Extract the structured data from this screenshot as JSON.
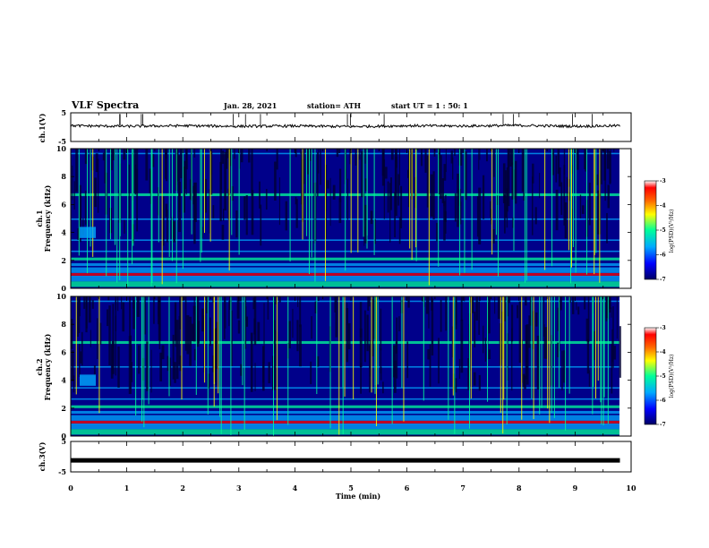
{
  "header": {
    "title": "VLF Spectra",
    "date": "Jan. 28, 2021",
    "station": "station= ATH",
    "start": "start  UT =   1 : 50: 1"
  },
  "colors": {
    "colormap": [
      "#000066",
      "#0000ff",
      "#00aaff",
      "#00ff99",
      "#ffff00",
      "#ff6600",
      "#ff0000",
      "#ffffff"
    ],
    "trace": "#000000"
  },
  "chart_data": [
    {
      "type": "line",
      "id": "ch1",
      "ylabel": "ch.1(V)",
      "ylim": [
        -5,
        5
      ],
      "yticks": [
        "5",
        "-5"
      ],
      "x": [
        0,
        1,
        2,
        3,
        4,
        5,
        6,
        7,
        8,
        9,
        9.8
      ],
      "values": [
        0.5,
        0.3,
        0.5,
        0.3,
        0.4,
        0.2,
        0.5,
        0.4,
        0.6,
        0.3,
        0.5
      ]
    },
    {
      "type": "heatmap",
      "id": "ch1-spec",
      "ylabel_top": "ch.1",
      "ylabel": "Frequency (kHz)",
      "ylim": [
        0,
        10
      ],
      "yticks": [
        "0",
        "2",
        "4",
        "6",
        "8",
        "10"
      ],
      "colorbar": {
        "label": "log(PSD)(V²/Hz)",
        "range": [
          -7,
          -3
        ],
        "ticks": [
          "-3",
          "-4",
          "-5",
          "-6",
          "-7"
        ]
      }
    },
    {
      "type": "heatmap",
      "id": "ch2-spec",
      "ylabel_top": "ch.2",
      "ylabel": "Frequency (kHz)",
      "ylim": [
        0,
        10
      ],
      "yticks": [
        "0",
        "2",
        "4",
        "6",
        "8",
        "10"
      ],
      "colorbar": {
        "label": "log(PSD)(V²/Hz)",
        "range": [
          -7,
          -3
        ],
        "ticks": [
          "-3",
          "-4",
          "-5",
          "-6",
          "-7"
        ]
      }
    },
    {
      "type": "line",
      "id": "ch3",
      "ylabel": "ch.3(V)",
      "ylim": [
        -5,
        5
      ],
      "yticks": [
        "5",
        "-5"
      ],
      "x": [
        0,
        9.8
      ],
      "values": [
        -1.2,
        -1.2
      ]
    }
  ],
  "xaxis": {
    "label": "Time  (min)",
    "range": [
      0,
      10
    ],
    "ticks": [
      "0",
      "1",
      "2",
      "3",
      "4",
      "5",
      "6",
      "7",
      "8",
      "9",
      "10"
    ]
  }
}
